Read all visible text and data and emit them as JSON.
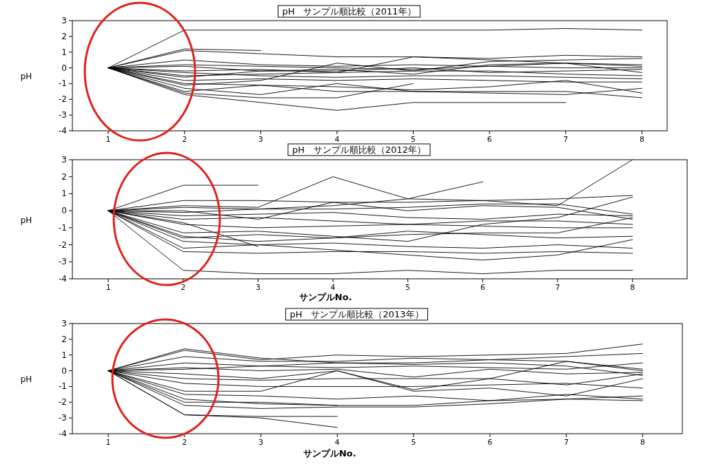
{
  "chart_data": [
    {
      "type": "line",
      "title": "pH　サンプル順比較（2011年）",
      "ylabel": "pH",
      "x": [
        1,
        2,
        3,
        4,
        5,
        6,
        7,
        8
      ],
      "xlim": [
        0.53,
        8.33
      ],
      "xticks": [
        1,
        2,
        3,
        4,
        5,
        6,
        7,
        8
      ],
      "ylim": [
        -4,
        3
      ],
      "yticks": [
        -4,
        -3,
        -2,
        -1,
        0,
        1,
        2,
        3
      ],
      "grid": false,
      "marker": "none",
      "series": [
        {
          "color": "#000000",
          "values": [
            0,
            2.4,
            2.4,
            2.4,
            2.4,
            2.4,
            2.5,
            2.4
          ]
        },
        {
          "color": "#000000",
          "values": [
            0,
            1.2,
            1.1,
            null,
            null,
            null,
            null,
            null
          ]
        },
        {
          "color": "#000000",
          "values": [
            0,
            1.1,
            0.9,
            0.7,
            0.7,
            0.6,
            0.8,
            0.7
          ]
        },
        {
          "color": "#000000",
          "values": [
            0,
            0.5,
            0.2,
            0.1,
            0.2,
            0.1,
            0.3,
            0.2
          ]
        },
        {
          "color": "#000000",
          "values": [
            0,
            0.2,
            0.1,
            0,
            -0.1,
            0.1,
            0,
            0
          ]
        },
        {
          "color": "#000000",
          "values": [
            0,
            -0.2,
            -0.1,
            -0.3,
            -0.2,
            -0.2,
            -0.4,
            -0.5
          ]
        },
        {
          "color": "#000000",
          "values": [
            0,
            -0.5,
            -0.4,
            -0.3,
            0.7,
            0.5,
            0.3,
            0.1
          ]
        },
        {
          "color": "#000000",
          "values": [
            0,
            -0.8,
            -0.7,
            -0.8,
            -0.7,
            -0.8,
            -0.9,
            -0.9
          ]
        },
        {
          "color": "#000000",
          "values": [
            0,
            -1.1,
            -0.8,
            0.3,
            -0.2,
            0.4,
            0.5,
            0.6
          ]
        },
        {
          "color": "#000000",
          "values": [
            0,
            -1.3,
            -1.7,
            -1.0,
            -1.5,
            -1.6,
            -1.7,
            -1.3
          ]
        },
        {
          "color": "#000000",
          "values": [
            0,
            -1.6,
            -1.9,
            -1.9,
            -1.0,
            null,
            null,
            null
          ]
        },
        {
          "color": "#000000",
          "values": [
            0,
            -1.7,
            -2.2,
            -2.7,
            -2.2,
            -2.2,
            -2.2,
            null
          ]
        },
        {
          "color": "#000000",
          "values": [
            0,
            -1.5,
            -1.1,
            -1.5,
            -1.5,
            -1.5,
            -1.5,
            -1.9
          ]
        },
        {
          "color": "#000000",
          "values": [
            0,
            -0.3,
            -0.5,
            -0.6,
            -0.5,
            -0.5,
            -0.6,
            -0.7
          ]
        },
        {
          "color": "#000000",
          "values": [
            0,
            0.1,
            -0.2,
            -0.1,
            -0.4,
            0.2,
            0.3,
            -0.3
          ]
        },
        {
          "color": "#000000",
          "values": [
            0,
            -0.6,
            -0.2,
            -0.2,
            0,
            -0.3,
            -0.2,
            -0.1
          ]
        },
        {
          "color": "#000000",
          "values": [
            0,
            -1.0,
            -1.1,
            -1.2,
            -1.4,
            -1.2,
            -0.8,
            -1.6
          ]
        }
      ]
    },
    {
      "type": "line",
      "title": "pH　サンプル順比較（2012年）",
      "xlabel": "サンプルNo.",
      "ylabel": "pH",
      "x": [
        1,
        2,
        3,
        4,
        5,
        6,
        7,
        8
      ],
      "xlim": [
        0.52,
        8.73
      ],
      "xticks": [
        1,
        2,
        3,
        4,
        5,
        6,
        7,
        8
      ],
      "ylim": [
        -4,
        3
      ],
      "yticks": [
        -4,
        -3,
        -2,
        -1,
        0,
        1,
        2,
        3
      ],
      "grid": false,
      "marker": "none",
      "series": [
        {
          "color": "#000000",
          "values": [
            0,
            1.5,
            1.5,
            null,
            null,
            null,
            null,
            null
          ]
        },
        {
          "color": "#000000",
          "values": [
            0,
            0.6,
            0.6,
            0.5,
            0.5,
            0.6,
            0.7,
            0.9
          ]
        },
        {
          "color": "#000000",
          "values": [
            0,
            0.3,
            0.2,
            2.0,
            0.7,
            1.7,
            null,
            null
          ]
        },
        {
          "color": "#000000",
          "values": [
            0,
            0.2,
            0.1,
            0.3,
            0.7,
            0.6,
            0.3,
            3.0
          ]
        },
        {
          "color": "#000000",
          "values": [
            0,
            -0.1,
            0.1,
            0.1,
            0.2,
            0.4,
            0.4,
            -0.2
          ]
        },
        {
          "color": "#000000",
          "values": [
            0,
            -0.3,
            -0.2,
            -0.1,
            -0.4,
            -0.5,
            -0.2,
            -0.3
          ]
        },
        {
          "color": "#000000",
          "values": [
            0,
            -0.5,
            -0.4,
            -0.6,
            -0.8,
            -0.6,
            -0.6,
            -0.8
          ]
        },
        {
          "color": "#000000",
          "values": [
            0,
            -0.8,
            -1.0,
            -0.9,
            -0.8,
            -0.9,
            -1.0,
            -1.0
          ]
        },
        {
          "color": "#000000",
          "values": [
            0,
            -1.3,
            -1.2,
            -1.5,
            -1.8,
            -0.8,
            -0.4,
            0.8
          ]
        },
        {
          "color": "#000000",
          "values": [
            0,
            -1.5,
            -1.8,
            -1.6,
            -1.4,
            -1.3,
            -1.3,
            -0.4
          ]
        },
        {
          "color": "#000000",
          "values": [
            0,
            -0.7,
            -2.1,
            null,
            null,
            null,
            null,
            null
          ]
        },
        {
          "color": "#000000",
          "values": [
            0,
            -1.8,
            -2.0,
            -1.9,
            -2.1,
            -2.2,
            -2.0,
            -2.2
          ]
        },
        {
          "color": "#000000",
          "values": [
            0,
            -2.2,
            -2.0,
            -2.3,
            -2.6,
            -2.9,
            -2.6,
            -1.7
          ]
        },
        {
          "color": "#000000",
          "values": [
            0,
            -2.4,
            -2.5,
            -2.4,
            -2.4,
            -2.5,
            -2.4,
            -2.5
          ]
        },
        {
          "color": "#000000",
          "values": [
            0,
            -3.5,
            -3.7,
            -3.7,
            -3.5,
            -3.7,
            -3.5,
            -3.5
          ]
        },
        {
          "color": "#000000",
          "values": [
            0,
            -1.6,
            -1.4,
            -1.6,
            -1.2,
            -1.4,
            -1.6,
            -1.5
          ]
        },
        {
          "color": "#000000",
          "values": [
            0,
            0,
            -0.5,
            0.5,
            0,
            0.3,
            0.2,
            -0.5
          ]
        }
      ]
    },
    {
      "type": "line",
      "title": "pH　サンプル順比較（2013年）",
      "xlabel": "サンプルNo.",
      "ylabel": "pH",
      "x": [
        1,
        2,
        3,
        4,
        5,
        6,
        7,
        8
      ],
      "xlim": [
        0.53,
        8.52
      ],
      "xticks": [
        1,
        2,
        3,
        4,
        5,
        6,
        7,
        8
      ],
      "ylim": [
        -4,
        3
      ],
      "yticks": [
        -4,
        -3,
        -2,
        -1,
        0,
        1,
        2,
        3
      ],
      "grid": false,
      "marker": "none",
      "series": [
        {
          "color": "#000000",
          "values": [
            0,
            1.4,
            0.8,
            0.5,
            0.5,
            0.7,
            0.6,
            0.1
          ]
        },
        {
          "color": "#000000",
          "values": [
            0,
            1.3,
            0.7,
            1.0,
            0.9,
            1.0,
            1.1,
            1.7
          ]
        },
        {
          "color": "#000000",
          "values": [
            0,
            0.9,
            0.6,
            0.6,
            0.8,
            0.7,
            0.9,
            1.1
          ]
        },
        {
          "color": "#000000",
          "values": [
            0,
            0.5,
            0.3,
            0.2,
            0.3,
            0.2,
            0.1,
            0.5
          ]
        },
        {
          "color": "#000000",
          "values": [
            0,
            0.2,
            0,
            0.1,
            -0.4,
            0.1,
            -0.2,
            -0.1
          ]
        },
        {
          "color": "#000000",
          "values": [
            0,
            -0.2,
            -0.5,
            0,
            -1.2,
            -0.5,
            -0.9,
            -0.2
          ]
        },
        {
          "color": "#000000",
          "values": [
            0,
            -0.5,
            -0.6,
            -0.5,
            -0.5,
            -0.5,
            0.6,
            0
          ]
        },
        {
          "color": "#000000",
          "values": [
            0,
            -0.8,
            -1.0,
            -1.0,
            -1.0,
            -0.9,
            -0.8,
            -1.1
          ]
        },
        {
          "color": "#000000",
          "values": [
            0,
            -1.3,
            -1.3,
            0,
            -1.3,
            -1.1,
            -1.6,
            -0.5
          ]
        },
        {
          "color": "#000000",
          "values": [
            0,
            -1.5,
            -1.6,
            -1.8,
            -1.6,
            -1.9,
            -1.5,
            -1.8
          ]
        },
        {
          "color": "#000000",
          "values": [
            0,
            -1.8,
            -2.1,
            -2.2,
            null,
            null,
            null,
            null
          ]
        },
        {
          "color": "#000000",
          "values": [
            0,
            -2.0,
            -2.0,
            -2.2,
            -2.2,
            -1.9,
            -1.8,
            -1.6
          ]
        },
        {
          "color": "#000000",
          "values": [
            0,
            -2.8,
            -2.9,
            -2.9,
            null,
            null,
            null,
            null
          ]
        },
        {
          "color": "#000000",
          "values": [
            0,
            -2.8,
            -3.0,
            -3.6,
            null,
            null,
            null,
            null
          ]
        },
        {
          "color": "#000000",
          "values": [
            0,
            -2.2,
            -2.4,
            -2.3,
            -2.3,
            -2.1,
            -1.8,
            -1.9
          ]
        },
        {
          "color": "#000000",
          "values": [
            0,
            0.1,
            0.3,
            0.5,
            0.4,
            0.5,
            0.3,
            -0.3
          ]
        }
      ]
    }
  ]
}
